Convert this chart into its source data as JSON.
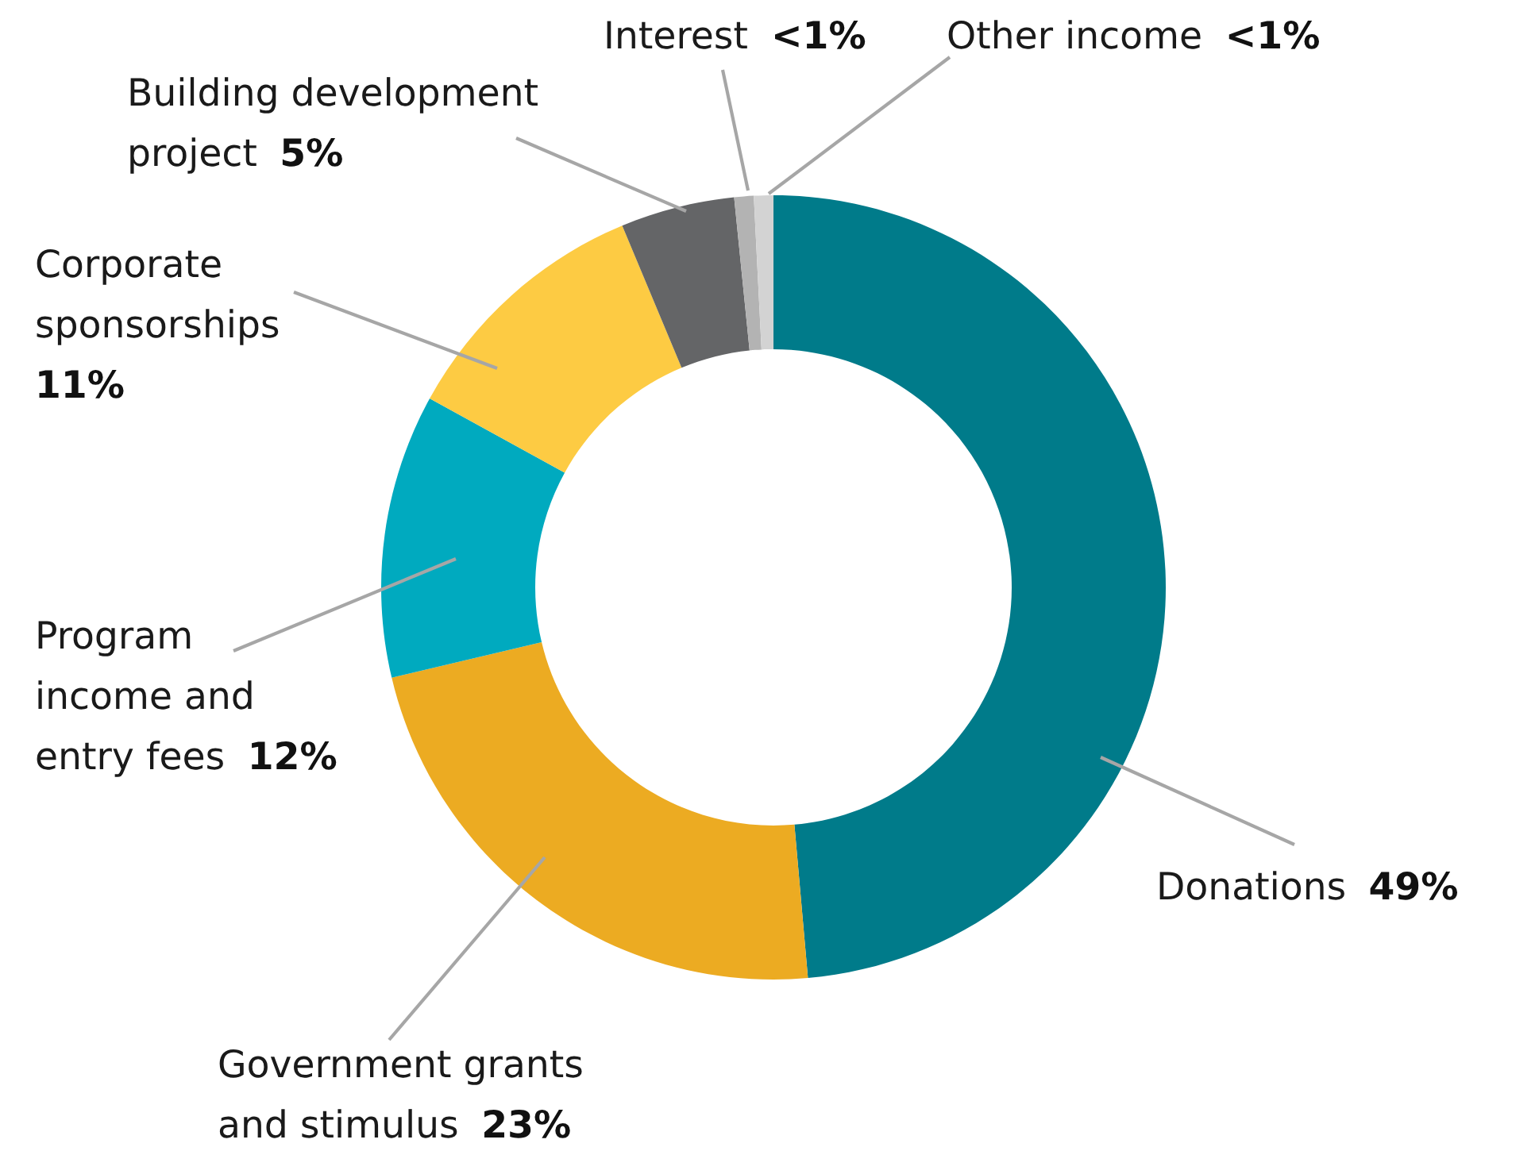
{
  "chart_data": {
    "type": "donut",
    "categories": [
      "Donations",
      "Government grants\nand stimulus",
      "Program\nincome and\nentry fees",
      "Corporate\nsponsorships",
      "Building development\nproject",
      "Interest",
      "Other income"
    ],
    "values": [
      48.6,
      22.7,
      11.7,
      10.7,
      4.7,
      0.8,
      0.8
    ],
    "value_labels": [
      "49%",
      "23%",
      "12%",
      "11%",
      "5%",
      "<1%",
      "<1%"
    ],
    "colors": [
      "#007b8a",
      "#ecab22",
      "#00aabf",
      "#fdcb43",
      "#646567",
      "#b3b3b3",
      "#d3d3d3"
    ]
  }
}
